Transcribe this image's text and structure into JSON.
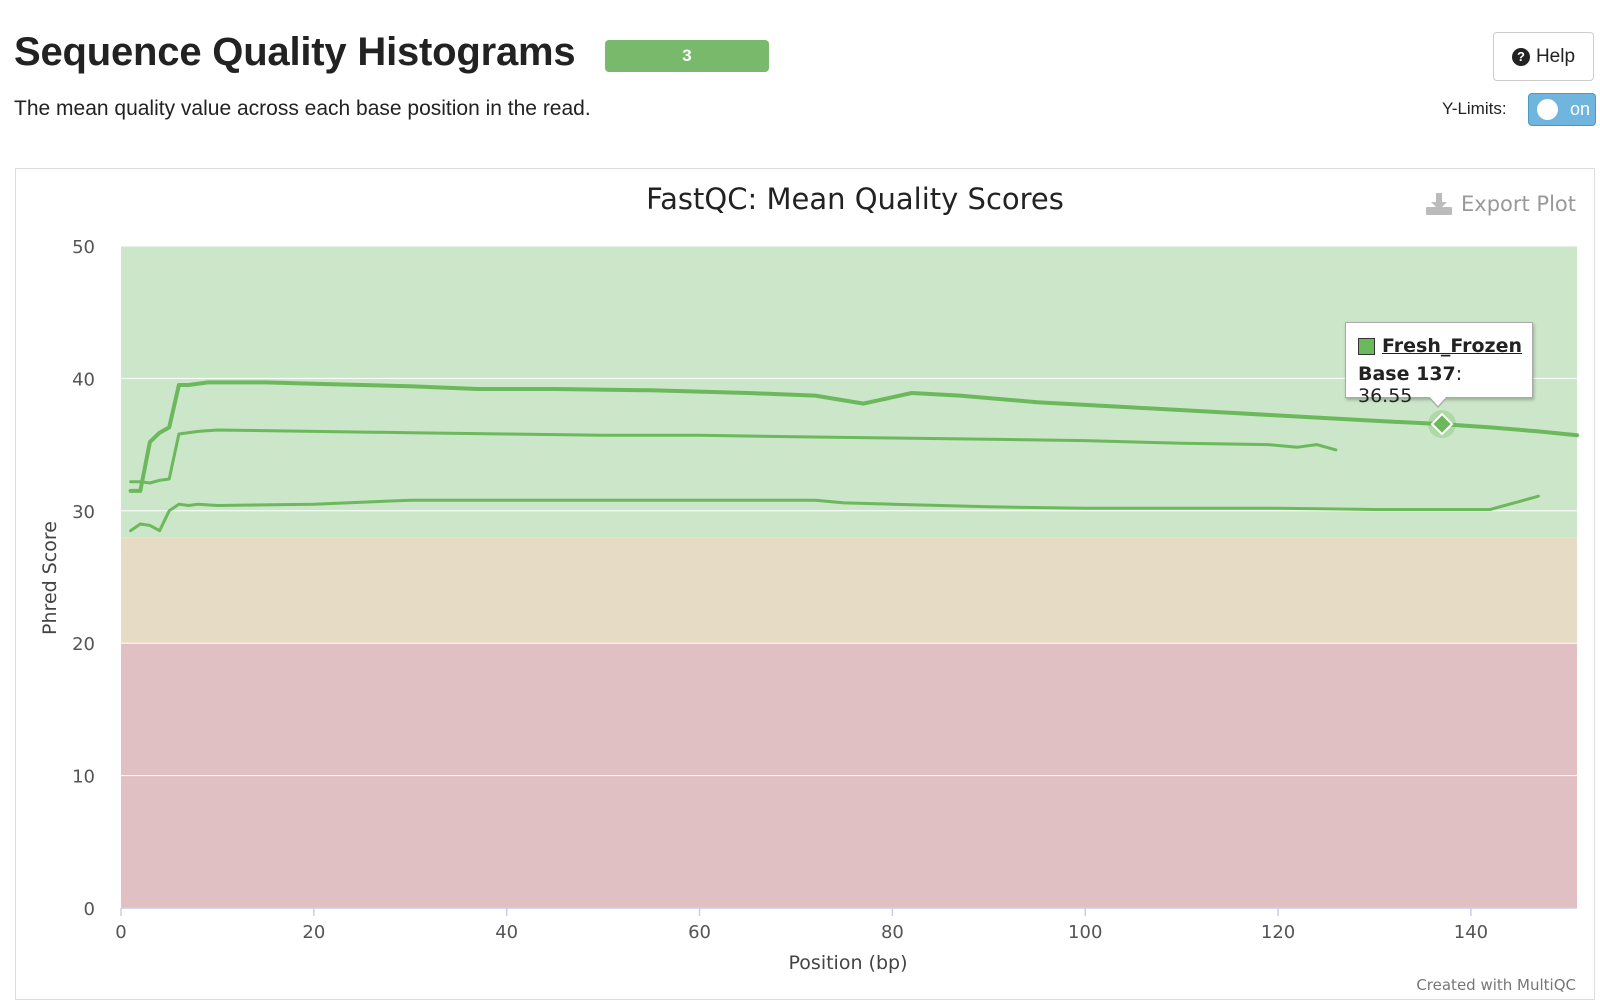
{
  "header": {
    "title": "Sequence Quality Histograms",
    "badge_count": "3",
    "subtitle": "The mean quality value across each base position in the read.",
    "help_label": "Help",
    "ylimits_label": "Y-Limits:",
    "ylimits_state": "on"
  },
  "colors": {
    "badge": "#79b96b",
    "series": "#6cb85c",
    "band_good": "#cbe6c8",
    "band_warn": "#e6dcc6",
    "band_fail": "#e1c0c3",
    "toggle": "#6fb5dd"
  },
  "plot": {
    "export_label": "Export Plot",
    "credit": "Created with MultiQC"
  },
  "tooltip": {
    "sample": "Fresh_Frozen",
    "base_label": "Base 137",
    "value": ": 36.55"
  },
  "chart_data": {
    "type": "line",
    "title": "FastQC: Mean Quality Scores",
    "xlabel": "Position (bp)",
    "ylabel": "Phred Score",
    "xlim": [
      0,
      151
    ],
    "ylim": [
      0,
      50
    ],
    "x_ticks": [
      0,
      20,
      40,
      60,
      80,
      100,
      120,
      140
    ],
    "y_ticks": [
      0,
      10,
      20,
      30,
      40,
      50
    ],
    "bands": [
      {
        "from": 28,
        "to": 50,
        "zone": "good"
      },
      {
        "from": 20,
        "to": 28,
        "zone": "warn"
      },
      {
        "from": 0,
        "to": 20,
        "zone": "fail"
      }
    ],
    "series": [
      {
        "name": "Fresh_Frozen",
        "x": [
          1,
          2,
          3,
          4,
          5,
          6,
          7,
          9,
          15,
          20,
          30,
          37,
          45,
          55,
          65,
          72,
          77,
          82,
          87,
          95,
          105,
          115,
          125,
          130,
          137,
          142,
          147,
          151
        ],
        "values": [
          31.5,
          31.5,
          35.2,
          35.9,
          36.3,
          39.5,
          39.5,
          39.7,
          39.7,
          39.6,
          39.4,
          39.2,
          39.2,
          39.1,
          38.9,
          38.7,
          38.1,
          38.9,
          38.7,
          38.2,
          37.8,
          37.4,
          37.0,
          36.8,
          36.55,
          36.3,
          36.0,
          35.7
        ]
      },
      {
        "name": "",
        "x": [
          1,
          2,
          3,
          4,
          5,
          6,
          8,
          10,
          20,
          30,
          40,
          50,
          60,
          70,
          80,
          90,
          100,
          110,
          119,
          122,
          124,
          126
        ],
        "values": [
          32.2,
          32.2,
          32.1,
          32.3,
          32.4,
          35.8,
          36.0,
          36.1,
          36.0,
          35.9,
          35.8,
          35.7,
          35.7,
          35.6,
          35.5,
          35.4,
          35.3,
          35.1,
          35.0,
          34.8,
          35.0,
          34.6
        ]
      },
      {
        "name": "",
        "x": [
          1,
          2,
          3,
          4,
          5,
          6,
          7,
          8,
          10,
          20,
          30,
          40,
          50,
          60,
          72,
          75,
          80,
          90,
          100,
          110,
          120,
          130,
          142,
          147
        ],
        "values": [
          28.5,
          29.0,
          28.9,
          28.5,
          30.0,
          30.5,
          30.4,
          30.5,
          30.4,
          30.5,
          30.8,
          30.8,
          30.8,
          30.8,
          30.8,
          30.6,
          30.5,
          30.3,
          30.2,
          30.2,
          30.2,
          30.1,
          30.1,
          31.1
        ]
      }
    ]
  }
}
